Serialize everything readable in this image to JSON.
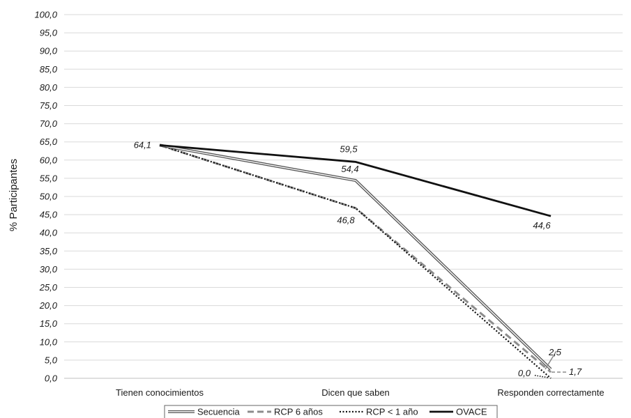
{
  "chart_data": {
    "type": "line",
    "ylabel": "% Participantes",
    "xlabel": "",
    "title": "",
    "ylim": [
      0,
      100
    ],
    "ytick_step": 5,
    "ytick_labels": [
      "0,0",
      "5,0",
      "10,0",
      "15,0",
      "20,0",
      "25,0",
      "30,0",
      "35,0",
      "40,0",
      "45,0",
      "50,0",
      "55,0",
      "60,0",
      "65,0",
      "70,0",
      "75,0",
      "80,0",
      "85,0",
      "90,0",
      "95,0",
      "100,0"
    ],
    "grid": "horizontal",
    "legend_position": "bottom",
    "categories": [
      "Tienen conocimientos",
      "Dicen que saben",
      "Responden correctamente"
    ],
    "series": [
      {
        "name": "Secuencia",
        "values": [
          64.1,
          54.4,
          2.5
        ],
        "style": "double",
        "color": "#555555"
      },
      {
        "name": "RCP 6 años",
        "values": [
          64.1,
          46.8,
          1.7
        ],
        "style": "dashed",
        "color": "#8c8c8c"
      },
      {
        "name": "RCP < 1 año",
        "values": [
          64.1,
          46.8,
          0.0
        ],
        "style": "dotted",
        "color": "#111111"
      },
      {
        "name": "OVACE",
        "values": [
          64.1,
          59.5,
          44.6
        ],
        "style": "solid",
        "color": "#111111"
      }
    ],
    "data_labels": [
      {
        "text": "64,1",
        "series": "Secuencia",
        "index": 0
      },
      {
        "text": "59,5",
        "series": "OVACE",
        "index": 1
      },
      {
        "text": "54,4",
        "series": "Secuencia",
        "index": 1
      },
      {
        "text": "46,8",
        "series": "RCP < 1 año",
        "index": 1
      },
      {
        "text": "44,6",
        "series": "OVACE",
        "index": 2
      },
      {
        "text": "2,5",
        "series": "Secuencia",
        "index": 2
      },
      {
        "text": "1,7",
        "series": "RCP 6 años",
        "index": 2
      },
      {
        "text": "0,0",
        "series": "RCP < 1 año",
        "index": 2
      }
    ]
  }
}
